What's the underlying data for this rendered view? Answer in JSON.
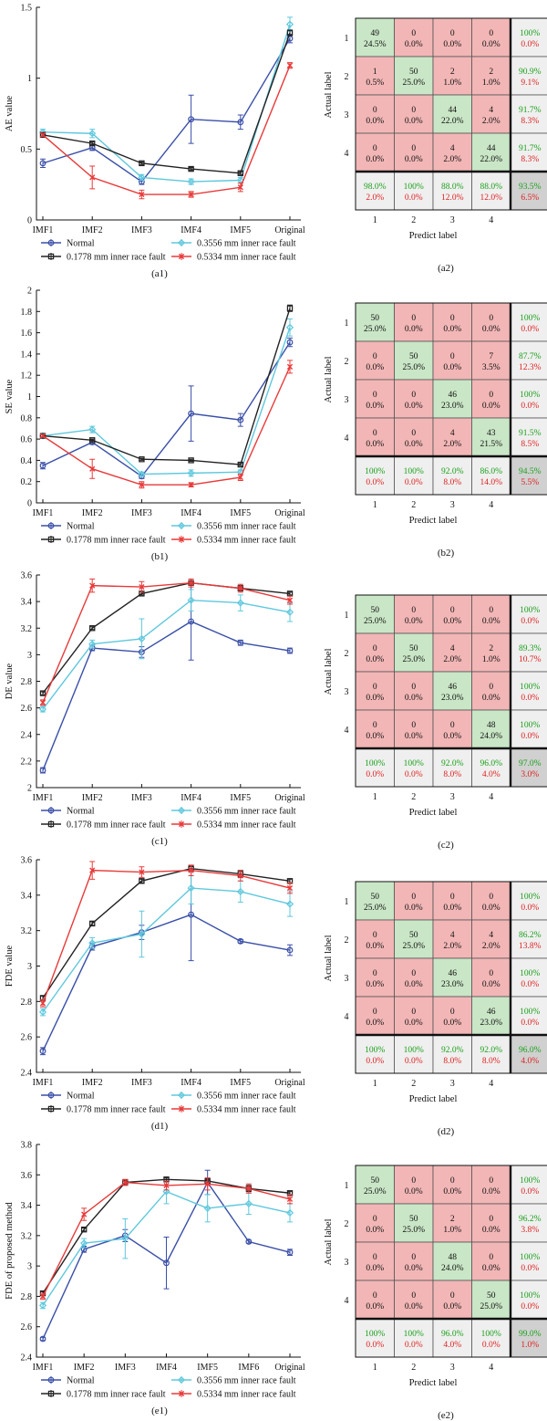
{
  "colors": {
    "Normal": "#3a4fa8",
    "0.1778 mm inner race fault": "#222222",
    "0.3556 mm inner race fault": "#5fc8dd",
    "0.5334 mm inner race fault": "#e83a3a",
    "cm_correct": "#c9e6c6",
    "cm_wrong": "#f2b6b6",
    "cm_summary": "#efefef",
    "cm_total": "#d0d0d0",
    "pct_good": "#1aa01a",
    "pct_bad": "#e02020"
  },
  "legend": [
    "Normal",
    "0.3556 mm inner race fault",
    "0.1778 mm inner race fault",
    "0.5334 mm inner race fault"
  ],
  "chart_data": [
    {
      "type": "line",
      "id": "a1",
      "caption": "(a1)",
      "ylabel": "AE value",
      "categories": [
        "IMF1",
        "IMF2",
        "IMF3",
        "IMF4",
        "IMF5",
        "Original"
      ],
      "ylim": [
        0,
        1.5
      ],
      "yticks": [
        "0",
        "0.5",
        "1",
        "1.5"
      ],
      "series": [
        {
          "name": "Normal",
          "values": [
            0.4,
            0.51,
            0.27,
            0.71,
            0.69,
            1.28
          ],
          "err": [
            0.03,
            0.02,
            0.02,
            0.17,
            0.05,
            0.03
          ]
        },
        {
          "name": "0.3556 mm inner race fault",
          "values": [
            0.62,
            0.61,
            0.3,
            0.27,
            0.28,
            1.38
          ],
          "err": [
            0.02,
            0.03,
            0.02,
            0.02,
            0.02,
            0.05
          ]
        },
        {
          "name": "0.1778 mm inner race fault",
          "values": [
            0.6,
            0.54,
            0.4,
            0.36,
            0.33,
            1.32
          ],
          "err": [
            0.01,
            0.01,
            0.01,
            0.01,
            0.01,
            0.02
          ]
        },
        {
          "name": "0.5334 mm inner race fault",
          "values": [
            0.6,
            0.3,
            0.18,
            0.18,
            0.23,
            1.09
          ],
          "err": [
            0.01,
            0.08,
            0.03,
            0.02,
            0.03,
            0.02
          ]
        }
      ]
    },
    {
      "type": "line",
      "id": "b1",
      "caption": "(b1)",
      "ylabel": "SE value",
      "categories": [
        "IMF1",
        "IMF2",
        "IMF3",
        "IMF4",
        "IMF5",
        "Original"
      ],
      "ylim": [
        0,
        2
      ],
      "yticks": [
        "0",
        "0.2",
        "0.4",
        "0.6",
        "0.8",
        "1",
        "1.2",
        "1.4",
        "1.6",
        "1.8",
        "2"
      ],
      "series": [
        {
          "name": "Normal",
          "values": [
            0.35,
            0.57,
            0.25,
            0.84,
            0.78,
            1.51
          ],
          "err": [
            0.03,
            0.02,
            0.02,
            0.26,
            0.06,
            0.04
          ]
        },
        {
          "name": "0.3556 mm inner race fault",
          "values": [
            0.63,
            0.69,
            0.27,
            0.28,
            0.29,
            1.65
          ],
          "err": [
            0.02,
            0.03,
            0.02,
            0.03,
            0.02,
            0.08
          ]
        },
        {
          "name": "0.1778 mm inner race fault",
          "values": [
            0.63,
            0.59,
            0.41,
            0.4,
            0.36,
            1.83
          ],
          "err": [
            0.01,
            0.01,
            0.01,
            0.01,
            0.01,
            0.03
          ]
        },
        {
          "name": "0.5334 mm inner race fault",
          "values": [
            0.63,
            0.32,
            0.17,
            0.17,
            0.24,
            1.28
          ],
          "err": [
            0.01,
            0.09,
            0.03,
            0.02,
            0.03,
            0.06
          ]
        }
      ]
    },
    {
      "type": "line",
      "id": "c1",
      "caption": "(c1)",
      "ylabel": "DE value",
      "categories": [
        "IMF1",
        "IMF2",
        "IMF3",
        "IMF4",
        "IMF5",
        "Original"
      ],
      "ylim": [
        2,
        3.6
      ],
      "yticks": [
        "2",
        "2.2",
        "2.4",
        "2.6",
        "2.8",
        "3",
        "3.2",
        "3.4",
        "3.6"
      ],
      "series": [
        {
          "name": "Normal",
          "values": [
            2.13,
            3.05,
            3.02,
            3.25,
            3.09,
            3.03
          ],
          "err": [
            0.02,
            0.02,
            0.04,
            0.29,
            0.02,
            0.02
          ]
        },
        {
          "name": "0.3556 mm inner race fault",
          "values": [
            2.59,
            3.08,
            3.12,
            3.41,
            3.39,
            3.32
          ],
          "err": [
            0.02,
            0.03,
            0.15,
            0.08,
            0.06,
            0.07
          ]
        },
        {
          "name": "0.1778 mm inner race fault",
          "values": [
            2.71,
            3.2,
            3.46,
            3.54,
            3.5,
            3.46
          ],
          "err": [
            0.01,
            0.01,
            0.01,
            0.01,
            0.02,
            0.01
          ]
        },
        {
          "name": "0.5334 mm inner race fault",
          "values": [
            2.64,
            3.52,
            3.51,
            3.54,
            3.5,
            3.41
          ],
          "err": [
            0.02,
            0.05,
            0.04,
            0.03,
            0.03,
            0.03
          ]
        }
      ]
    },
    {
      "type": "line",
      "id": "d1",
      "caption": "(d1)",
      "ylabel": "FDE value",
      "categories": [
        "IMF1",
        "IMF2",
        "IMF3",
        "IMF4",
        "IMF5",
        "Original"
      ],
      "ylim": [
        2.4,
        3.6
      ],
      "yticks": [
        "2.4",
        "2.6",
        "2.8",
        "3",
        "3.2",
        "3.4",
        "3.6"
      ],
      "series": [
        {
          "name": "Normal",
          "values": [
            2.52,
            3.11,
            3.19,
            3.29,
            3.14,
            3.09
          ],
          "err": [
            0.02,
            0.02,
            0.04,
            0.26,
            0.01,
            0.03
          ]
        },
        {
          "name": "0.3556 mm inner race fault",
          "values": [
            2.74,
            3.13,
            3.18,
            3.44,
            3.42,
            3.35
          ],
          "err": [
            0.02,
            0.03,
            0.13,
            0.09,
            0.06,
            0.07
          ]
        },
        {
          "name": "0.1778 mm inner race fault",
          "values": [
            2.82,
            3.24,
            3.48,
            3.55,
            3.52,
            3.48
          ],
          "err": [
            0.01,
            0.01,
            0.01,
            0.01,
            0.02,
            0.01
          ]
        },
        {
          "name": "0.5334 mm inner race fault",
          "values": [
            2.79,
            3.54,
            3.53,
            3.54,
            3.51,
            3.44
          ],
          "err": [
            0.02,
            0.05,
            0.03,
            0.03,
            0.03,
            0.03
          ]
        }
      ]
    },
    {
      "type": "line",
      "id": "e1",
      "caption": "(e1)",
      "ylabel": "FDE of proposed method",
      "categories": [
        "IMF1",
        "IMF2",
        "IMF3",
        "IMF4",
        "IMF5",
        "IMF6",
        "Original"
      ],
      "ylim": [
        2.4,
        3.8
      ],
      "yticks": [
        "2.4",
        "2.6",
        "2.8",
        "3",
        "3.2",
        "3.4",
        "3.6",
        "3.8"
      ],
      "series": [
        {
          "name": "Normal",
          "values": [
            2.52,
            3.11,
            3.2,
            3.02,
            3.55,
            3.16,
            3.09
          ],
          "err": [
            0.01,
            0.02,
            0.04,
            0.17,
            0.08,
            0.01,
            0.02
          ]
        },
        {
          "name": "0.3556 mm inner race fault",
          "values": [
            2.74,
            3.15,
            3.18,
            3.49,
            3.38,
            3.41,
            3.35
          ],
          "err": [
            0.02,
            0.03,
            0.13,
            0.08,
            0.09,
            0.07,
            0.06
          ]
        },
        {
          "name": "0.1778 mm inner race fault",
          "values": [
            2.82,
            3.24,
            3.55,
            3.57,
            3.56,
            3.51,
            3.48
          ],
          "err": [
            0.01,
            0.01,
            0.01,
            0.01,
            0.01,
            0.02,
            0.01
          ]
        },
        {
          "name": "0.5334 mm inner race fault",
          "values": [
            2.8,
            3.34,
            3.55,
            3.53,
            3.54,
            3.51,
            3.44
          ],
          "err": [
            0.02,
            0.04,
            0.02,
            0.03,
            0.04,
            0.03,
            0.03
          ]
        }
      ]
    },
    {
      "type": "heatmap",
      "id": "a2",
      "caption": "(a2)",
      "xlabel": "Predict label",
      "ylabel": "Actual label",
      "labels": [
        "1",
        "2",
        "3",
        "4"
      ],
      "counts": [
        [
          49,
          0,
          0,
          0
        ],
        [
          1,
          50,
          2,
          2
        ],
        [
          0,
          0,
          44,
          4
        ],
        [
          0,
          0,
          4,
          44
        ]
      ],
      "cell_pct": [
        [
          "24.5%",
          "0.0%",
          "0.0%",
          "0.0%"
        ],
        [
          "0.5%",
          "25.0%",
          "1.0%",
          "1.0%"
        ],
        [
          "0.0%",
          "0.0%",
          "22.0%",
          "2.0%"
        ],
        [
          "0.0%",
          "0.0%",
          "2.0%",
          "22.0%"
        ]
      ],
      "row_summary": [
        [
          "100%",
          "0.0%"
        ],
        [
          "90.9%",
          "9.1%"
        ],
        [
          "91.7%",
          "8.3%"
        ],
        [
          "91.7%",
          "8.3%"
        ]
      ],
      "col_summary": [
        [
          "98.0%",
          "2.0%"
        ],
        [
          "100%",
          "0.0%"
        ],
        [
          "88.0%",
          "12.0%"
        ],
        [
          "88.0%",
          "12.0%"
        ]
      ],
      "total": [
        "93.5%",
        "6.5%"
      ]
    },
    {
      "type": "heatmap",
      "id": "b2",
      "caption": "(b2)",
      "xlabel": "Predict label",
      "ylabel": "Actual label",
      "labels": [
        "1",
        "2",
        "3",
        "4"
      ],
      "counts": [
        [
          50,
          0,
          0,
          0
        ],
        [
          0,
          50,
          0,
          7
        ],
        [
          0,
          0,
          46,
          0
        ],
        [
          0,
          0,
          4,
          43
        ]
      ],
      "cell_pct": [
        [
          "25.0%",
          "0.0%",
          "0.0%",
          "0.0%"
        ],
        [
          "0.0%",
          "25.0%",
          "0.0%",
          "3.5%"
        ],
        [
          "0.0%",
          "0.0%",
          "23.0%",
          "0.0%"
        ],
        [
          "0.0%",
          "0.0%",
          "2.0%",
          "21.5%"
        ]
      ],
      "row_summary": [
        [
          "100%",
          "0.0%"
        ],
        [
          "87.7%",
          "12.3%"
        ],
        [
          "100%",
          "0.0%"
        ],
        [
          "91.5%",
          "8.5%"
        ]
      ],
      "col_summary": [
        [
          "100%",
          "0.0%"
        ],
        [
          "100%",
          "0.0%"
        ],
        [
          "92.0%",
          "8.0%"
        ],
        [
          "86.0%",
          "14.0%"
        ]
      ],
      "total": [
        "94.5%",
        "5.5%"
      ]
    },
    {
      "type": "heatmap",
      "id": "c2",
      "caption": "(c2)",
      "xlabel": "Predict label",
      "ylabel": "Actual label",
      "labels": [
        "1",
        "2",
        "3",
        "4"
      ],
      "counts": [
        [
          50,
          0,
          0,
          0
        ],
        [
          0,
          50,
          4,
          2
        ],
        [
          0,
          0,
          46,
          0
        ],
        [
          0,
          0,
          0,
          48
        ]
      ],
      "cell_pct": [
        [
          "25.0%",
          "0.0%",
          "0.0%",
          "0.0%"
        ],
        [
          "0.0%",
          "25.0%",
          "2.0%",
          "1.0%"
        ],
        [
          "0.0%",
          "0.0%",
          "23.0%",
          "0.0%"
        ],
        [
          "0.0%",
          "0.0%",
          "0.0%",
          "24.0%"
        ]
      ],
      "row_summary": [
        [
          "100%",
          "0.0%"
        ],
        [
          "89.3%",
          "10.7%"
        ],
        [
          "100%",
          "0.0%"
        ],
        [
          "100%",
          "0.0%"
        ]
      ],
      "col_summary": [
        [
          "100%",
          "0.0%"
        ],
        [
          "100%",
          "0.0%"
        ],
        [
          "92.0%",
          "8.0%"
        ],
        [
          "96.0%",
          "4.0%"
        ]
      ],
      "total": [
        "97.0%",
        "3.0%"
      ]
    },
    {
      "type": "heatmap",
      "id": "d2",
      "caption": "(d2)",
      "xlabel": "Predict label",
      "ylabel": "Actual label",
      "labels": [
        "1",
        "2",
        "3",
        "4"
      ],
      "counts": [
        [
          50,
          0,
          0,
          0
        ],
        [
          0,
          50,
          4,
          4
        ],
        [
          0,
          0,
          46,
          0
        ],
        [
          0,
          0,
          0,
          46
        ]
      ],
      "cell_pct": [
        [
          "25.0%",
          "0.0%",
          "0.0%",
          "0.0%"
        ],
        [
          "0.0%",
          "25.0%",
          "2.0%",
          "2.0%"
        ],
        [
          "0.0%",
          "0.0%",
          "23.0%",
          "0.0%"
        ],
        [
          "0.0%",
          "0.0%",
          "0.0%",
          "23.0%"
        ]
      ],
      "row_summary": [
        [
          "100%",
          "0.0%"
        ],
        [
          "86.2%",
          "13.8%"
        ],
        [
          "100%",
          "0.0%"
        ],
        [
          "100%",
          "0.0%"
        ]
      ],
      "col_summary": [
        [
          "100%",
          "0.0%"
        ],
        [
          "100%",
          "0.0%"
        ],
        [
          "92.0%",
          "8.0%"
        ],
        [
          "92.0%",
          "8.0%"
        ]
      ],
      "total": [
        "96.0%",
        "4.0%"
      ]
    },
    {
      "type": "heatmap",
      "id": "e2",
      "caption": "(e2)",
      "xlabel": "Predict label",
      "ylabel": "Actual label",
      "labels": [
        "1",
        "2",
        "3",
        "4"
      ],
      "counts": [
        [
          50,
          0,
          0,
          0
        ],
        [
          0,
          50,
          2,
          0
        ],
        [
          0,
          0,
          48,
          0
        ],
        [
          0,
          0,
          0,
          50
        ]
      ],
      "cell_pct": [
        [
          "25.0%",
          "0.0%",
          "0.0%",
          "0.0%"
        ],
        [
          "0.0%",
          "25.0%",
          "1.0%",
          "0.0%"
        ],
        [
          "0.0%",
          "0.0%",
          "24.0%",
          "0.0%"
        ],
        [
          "0.0%",
          "0.0%",
          "0.0%",
          "25.0%"
        ]
      ],
      "row_summary": [
        [
          "100%",
          "0.0%"
        ],
        [
          "96.2%",
          "3.8%"
        ],
        [
          "100%",
          "0.0%"
        ],
        [
          "100%",
          "0.0%"
        ]
      ],
      "col_summary": [
        [
          "100%",
          "0.0%"
        ],
        [
          "100%",
          "0.0%"
        ],
        [
          "96.0%",
          "4.0%"
        ],
        [
          "100%",
          "0.0%"
        ]
      ],
      "total": [
        "99.0%",
        "1.0%"
      ]
    }
  ]
}
